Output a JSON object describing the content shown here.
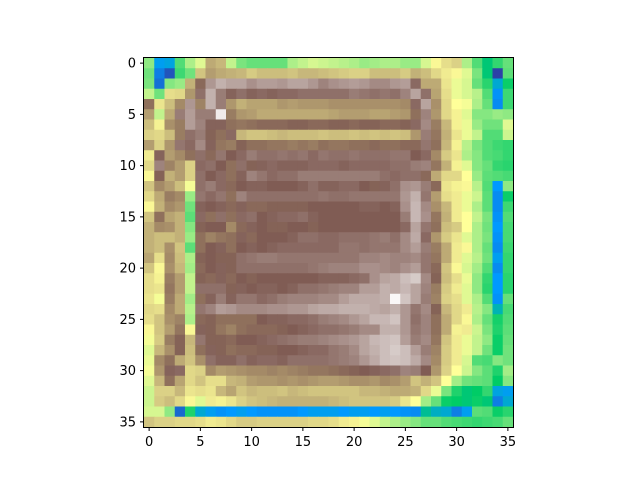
{
  "chart_data": {
    "type": "heatmap",
    "title": "",
    "xlabel": "",
    "ylabel": "",
    "colormap": "terrain",
    "rows": 36,
    "cols": 36,
    "xlim": [
      -0.5,
      35.5
    ],
    "ylim": [
      35.5,
      -0.5
    ],
    "x_ticks": [
      0,
      5,
      10,
      15,
      20,
      25,
      30,
      35
    ],
    "y_ticks": [
      0,
      5,
      10,
      15,
      20,
      25,
      30,
      35
    ],
    "x_tick_labels": [
      "0",
      "5",
      "10",
      "15",
      "20",
      "25",
      "30",
      "35"
    ],
    "y_tick_labels": [
      "0",
      "5",
      "10",
      "15",
      "20",
      "25",
      "30",
      "35"
    ],
    "grid": false,
    "values": [
      [
        0.39,
        0.16,
        0.17,
        0.33,
        0.42,
        0.47,
        0.63,
        0.61,
        0.44,
        0.37,
        0.35,
        0.35,
        0.35,
        0.35,
        0.42,
        0.44,
        0.46,
        0.45,
        0.44,
        0.43,
        0.42,
        0.4,
        0.41,
        0.42,
        0.42,
        0.4,
        0.4,
        0.46,
        0.51,
        0.55,
        0.57,
        0.42,
        0.33,
        0.24,
        0.3,
        0.35
      ],
      [
        0.36,
        0.11,
        0.05,
        0.31,
        0.36,
        0.59,
        0.65,
        0.63,
        0.62,
        0.61,
        0.58,
        0.6,
        0.6,
        0.6,
        0.59,
        0.61,
        0.61,
        0.6,
        0.59,
        0.58,
        0.57,
        0.57,
        0.6,
        0.6,
        0.6,
        0.58,
        0.62,
        0.6,
        0.56,
        0.53,
        0.51,
        0.47,
        0.37,
        0.24,
        0.02,
        0.34
      ],
      [
        0.37,
        0.09,
        0.38,
        0.4,
        0.62,
        0.73,
        0.84,
        0.88,
        0.86,
        0.86,
        0.83,
        0.85,
        0.85,
        0.84,
        0.86,
        0.86,
        0.84,
        0.81,
        0.83,
        0.84,
        0.85,
        0.84,
        0.82,
        0.82,
        0.84,
        0.85,
        0.77,
        0.63,
        0.63,
        0.54,
        0.48,
        0.46,
        0.35,
        0.29,
        0.18,
        0.26
      ],
      [
        0.44,
        0.36,
        0.55,
        0.56,
        0.66,
        0.78,
        0.88,
        0.8,
        0.76,
        0.78,
        0.76,
        0.77,
        0.76,
        0.77,
        0.77,
        0.78,
        0.78,
        0.78,
        0.78,
        0.78,
        0.8,
        0.79,
        0.78,
        0.79,
        0.78,
        0.81,
        0.86,
        0.78,
        0.64,
        0.55,
        0.48,
        0.46,
        0.43,
        0.33,
        0.14,
        0.31
      ],
      [
        0.72,
        0.54,
        0.6,
        0.68,
        0.84,
        0.69,
        0.88,
        0.8,
        0.66,
        0.62,
        0.64,
        0.64,
        0.64,
        0.66,
        0.65,
        0.66,
        0.66,
        0.66,
        0.67,
        0.67,
        0.67,
        0.67,
        0.67,
        0.67,
        0.67,
        0.68,
        0.77,
        0.86,
        0.67,
        0.56,
        0.5,
        0.49,
        0.42,
        0.35,
        0.13,
        0.31
      ],
      [
        0.65,
        0.44,
        0.63,
        0.8,
        0.85,
        0.8,
        0.8,
        0.97,
        0.7,
        0.66,
        0.65,
        0.63,
        0.63,
        0.63,
        0.63,
        0.63,
        0.63,
        0.63,
        0.64,
        0.65,
        0.65,
        0.65,
        0.64,
        0.64,
        0.65,
        0.66,
        0.72,
        0.81,
        0.66,
        0.56,
        0.52,
        0.47,
        0.38,
        0.38,
        0.4,
        0.39
      ],
      [
        0.6,
        0.52,
        0.67,
        0.7,
        0.85,
        0.81,
        0.76,
        0.76,
        0.72,
        0.71,
        0.72,
        0.73,
        0.73,
        0.73,
        0.74,
        0.74,
        0.73,
        0.73,
        0.74,
        0.74,
        0.73,
        0.74,
        0.74,
        0.73,
        0.73,
        0.74,
        0.77,
        0.82,
        0.7,
        0.61,
        0.52,
        0.48,
        0.4,
        0.36,
        0.36,
        0.47
      ],
      [
        0.57,
        0.56,
        0.6,
        0.7,
        0.78,
        0.8,
        0.74,
        0.72,
        0.77,
        0.61,
        0.59,
        0.59,
        0.6,
        0.61,
        0.6,
        0.6,
        0.6,
        0.59,
        0.6,
        0.6,
        0.59,
        0.6,
        0.59,
        0.6,
        0.59,
        0.6,
        0.66,
        0.8,
        0.71,
        0.62,
        0.54,
        0.48,
        0.44,
        0.33,
        0.33,
        0.45
      ],
      [
        0.65,
        0.57,
        0.66,
        0.79,
        0.77,
        0.82,
        0.76,
        0.71,
        0.7,
        0.74,
        0.72,
        0.72,
        0.71,
        0.71,
        0.7,
        0.71,
        0.7,
        0.72,
        0.71,
        0.71,
        0.72,
        0.72,
        0.73,
        0.72,
        0.72,
        0.73,
        0.73,
        0.79,
        0.72,
        0.61,
        0.52,
        0.43,
        0.37,
        0.33,
        0.31,
        0.3
      ],
      [
        0.53,
        0.76,
        0.65,
        0.68,
        0.72,
        0.78,
        0.73,
        0.79,
        0.75,
        0.77,
        0.8,
        0.78,
        0.78,
        0.79,
        0.78,
        0.79,
        0.77,
        0.79,
        0.78,
        0.78,
        0.79,
        0.78,
        0.78,
        0.78,
        0.79,
        0.79,
        0.75,
        0.77,
        0.68,
        0.58,
        0.54,
        0.42,
        0.38,
        0.33,
        0.32,
        0.3
      ],
      [
        0.56,
        0.81,
        0.69,
        0.65,
        0.57,
        0.77,
        0.78,
        0.75,
        0.72,
        0.78,
        0.74,
        0.76,
        0.77,
        0.76,
        0.76,
        0.76,
        0.77,
        0.77,
        0.77,
        0.76,
        0.77,
        0.77,
        0.77,
        0.77,
        0.78,
        0.78,
        0.8,
        0.81,
        0.71,
        0.62,
        0.52,
        0.47,
        0.38,
        0.35,
        0.3,
        0.29
      ],
      [
        0.51,
        0.74,
        0.62,
        0.65,
        0.57,
        0.78,
        0.75,
        0.77,
        0.72,
        0.76,
        0.81,
        0.79,
        0.77,
        0.78,
        0.78,
        0.8,
        0.8,
        0.8,
        0.8,
        0.8,
        0.8,
        0.8,
        0.8,
        0.78,
        0.77,
        0.78,
        0.78,
        0.73,
        0.63,
        0.56,
        0.56,
        0.5,
        0.4,
        0.34,
        0.33,
        0.32
      ],
      [
        0.59,
        0.68,
        0.65,
        0.6,
        0.49,
        0.78,
        0.8,
        0.77,
        0.73,
        0.75,
        0.76,
        0.76,
        0.75,
        0.75,
        0.75,
        0.76,
        0.78,
        0.76,
        0.76,
        0.77,
        0.77,
        0.75,
        0.74,
        0.76,
        0.78,
        0.83,
        0.84,
        0.8,
        0.73,
        0.54,
        0.52,
        0.51,
        0.43,
        0.33,
        0.15,
        0.39
      ],
      [
        0.56,
        0.63,
        0.7,
        0.68,
        0.4,
        0.79,
        0.77,
        0.79,
        0.72,
        0.81,
        0.78,
        0.78,
        0.78,
        0.78,
        0.78,
        0.78,
        0.78,
        0.79,
        0.78,
        0.78,
        0.79,
        0.79,
        0.79,
        0.79,
        0.79,
        0.84,
        0.88,
        0.79,
        0.65,
        0.55,
        0.53,
        0.48,
        0.45,
        0.34,
        0.13,
        0.26
      ],
      [
        0.51,
        0.62,
        0.68,
        0.66,
        0.36,
        0.76,
        0.75,
        0.76,
        0.73,
        0.76,
        0.73,
        0.73,
        0.74,
        0.74,
        0.74,
        0.74,
        0.75,
        0.75,
        0.75,
        0.75,
        0.75,
        0.76,
        0.76,
        0.75,
        0.76,
        0.83,
        0.89,
        0.82,
        0.67,
        0.61,
        0.53,
        0.48,
        0.42,
        0.34,
        0.13,
        0.31
      ],
      [
        0.59,
        0.72,
        0.64,
        0.62,
        0.34,
        0.77,
        0.72,
        0.78,
        0.72,
        0.77,
        0.78,
        0.75,
        0.76,
        0.77,
        0.77,
        0.78,
        0.76,
        0.75,
        0.75,
        0.75,
        0.75,
        0.75,
        0.75,
        0.75,
        0.75,
        0.8,
        0.89,
        0.83,
        0.71,
        0.62,
        0.53,
        0.5,
        0.44,
        0.37,
        0.14,
        0.33
      ],
      [
        0.62,
        0.68,
        0.67,
        0.62,
        0.38,
        0.74,
        0.75,
        0.75,
        0.68,
        0.73,
        0.76,
        0.75,
        0.74,
        0.74,
        0.75,
        0.75,
        0.74,
        0.75,
        0.75,
        0.75,
        0.75,
        0.75,
        0.75,
        0.75,
        0.75,
        0.77,
        0.86,
        0.79,
        0.72,
        0.6,
        0.58,
        0.5,
        0.42,
        0.36,
        0.15,
        0.32
      ],
      [
        0.62,
        0.6,
        0.6,
        0.62,
        0.4,
        0.72,
        0.69,
        0.71,
        0.72,
        0.76,
        0.73,
        0.75,
        0.75,
        0.75,
        0.76,
        0.78,
        0.78,
        0.77,
        0.77,
        0.78,
        0.78,
        0.78,
        0.79,
        0.8,
        0.78,
        0.82,
        0.87,
        0.77,
        0.66,
        0.58,
        0.54,
        0.47,
        0.42,
        0.37,
        0.14,
        0.32
      ],
      [
        0.62,
        0.6,
        0.67,
        0.59,
        0.34,
        0.72,
        0.75,
        0.76,
        0.72,
        0.75,
        0.76,
        0.75,
        0.76,
        0.77,
        0.77,
        0.77,
        0.77,
        0.77,
        0.77,
        0.79,
        0.79,
        0.78,
        0.79,
        0.79,
        0.79,
        0.82,
        0.85,
        0.8,
        0.7,
        0.63,
        0.53,
        0.51,
        0.42,
        0.35,
        0.13,
        0.31
      ],
      [
        0.64,
        0.55,
        0.68,
        0.6,
        0.42,
        0.74,
        0.75,
        0.74,
        0.74,
        0.78,
        0.79,
        0.8,
        0.8,
        0.79,
        0.79,
        0.79,
        0.79,
        0.79,
        0.79,
        0.79,
        0.79,
        0.81,
        0.81,
        0.82,
        0.81,
        0.81,
        0.82,
        0.79,
        0.71,
        0.63,
        0.53,
        0.47,
        0.43,
        0.36,
        0.16,
        0.3
      ],
      [
        0.59,
        0.51,
        0.67,
        0.61,
        0.41,
        0.73,
        0.75,
        0.76,
        0.74,
        0.78,
        0.78,
        0.78,
        0.78,
        0.78,
        0.78,
        0.78,
        0.79,
        0.8,
        0.81,
        0.81,
        0.81,
        0.83,
        0.83,
        0.82,
        0.81,
        0.83,
        0.85,
        0.79,
        0.73,
        0.59,
        0.51,
        0.46,
        0.41,
        0.33,
        0.13,
        0.3
      ],
      [
        0.55,
        0.52,
        0.7,
        0.65,
        0.44,
        0.74,
        0.73,
        0.76,
        0.73,
        0.75,
        0.74,
        0.75,
        0.75,
        0.75,
        0.75,
        0.75,
        0.75,
        0.76,
        0.76,
        0.76,
        0.77,
        0.78,
        0.83,
        0.86,
        0.87,
        0.9,
        0.92,
        0.82,
        0.74,
        0.6,
        0.55,
        0.48,
        0.39,
        0.3,
        0.15,
        0.29
      ],
      [
        0.55,
        0.54,
        0.71,
        0.65,
        0.44,
        0.78,
        0.78,
        0.78,
        0.74,
        0.76,
        0.75,
        0.76,
        0.76,
        0.75,
        0.76,
        0.78,
        0.78,
        0.79,
        0.8,
        0.81,
        0.81,
        0.85,
        0.85,
        0.88,
        0.87,
        0.89,
        0.86,
        0.81,
        0.7,
        0.58,
        0.53,
        0.47,
        0.39,
        0.29,
        0.15,
        0.29
      ],
      [
        0.54,
        0.49,
        0.7,
        0.63,
        0.41,
        0.72,
        0.76,
        0.8,
        0.76,
        0.79,
        0.79,
        0.77,
        0.78,
        0.8,
        0.81,
        0.81,
        0.81,
        0.82,
        0.82,
        0.85,
        0.87,
        0.87,
        0.87,
        0.88,
        0.99,
        0.91,
        0.86,
        0.8,
        0.69,
        0.57,
        0.55,
        0.47,
        0.42,
        0.33,
        0.14,
        0.35
      ],
      [
        0.56,
        0.55,
        0.68,
        0.63,
        0.43,
        0.79,
        0.81,
        0.85,
        0.84,
        0.82,
        0.82,
        0.82,
        0.83,
        0.83,
        0.84,
        0.84,
        0.86,
        0.87,
        0.87,
        0.88,
        0.88,
        0.88,
        0.87,
        0.86,
        0.88,
        0.84,
        0.79,
        0.82,
        0.74,
        0.61,
        0.56,
        0.53,
        0.43,
        0.38,
        0.2,
        0.32
      ],
      [
        0.55,
        0.59,
        0.67,
        0.69,
        0.42,
        0.73,
        0.74,
        0.72,
        0.72,
        0.72,
        0.72,
        0.75,
        0.76,
        0.76,
        0.77,
        0.77,
        0.78,
        0.8,
        0.81,
        0.82,
        0.84,
        0.86,
        0.89,
        0.89,
        0.91,
        0.84,
        0.78,
        0.81,
        0.72,
        0.63,
        0.56,
        0.51,
        0.42,
        0.35,
        0.27,
        0.33
      ],
      [
        0.51,
        0.59,
        0.65,
        0.71,
        0.51,
        0.76,
        0.74,
        0.71,
        0.69,
        0.72,
        0.73,
        0.73,
        0.73,
        0.74,
        0.75,
        0.76,
        0.77,
        0.78,
        0.78,
        0.79,
        0.8,
        0.82,
        0.82,
        0.88,
        0.88,
        0.84,
        0.79,
        0.81,
        0.72,
        0.63,
        0.52,
        0.53,
        0.45,
        0.37,
        0.28,
        0.34
      ],
      [
        0.49,
        0.58,
        0.7,
        0.74,
        0.61,
        0.79,
        0.74,
        0.74,
        0.73,
        0.75,
        0.75,
        0.76,
        0.77,
        0.78,
        0.79,
        0.8,
        0.8,
        0.81,
        0.82,
        0.83,
        0.84,
        0.86,
        0.89,
        0.9,
        0.91,
        0.85,
        0.8,
        0.82,
        0.71,
        0.59,
        0.53,
        0.48,
        0.44,
        0.39,
        0.26,
        0.35
      ],
      [
        0.47,
        0.61,
        0.67,
        0.74,
        0.6,
        0.72,
        0.76,
        0.74,
        0.72,
        0.73,
        0.73,
        0.74,
        0.74,
        0.75,
        0.75,
        0.76,
        0.77,
        0.77,
        0.79,
        0.8,
        0.82,
        0.86,
        0.88,
        0.9,
        0.92,
        0.9,
        0.85,
        0.8,
        0.69,
        0.58,
        0.53,
        0.48,
        0.44,
        0.36,
        0.26,
        0.36
      ],
      [
        0.48,
        0.68,
        0.72,
        0.63,
        0.59,
        0.67,
        0.78,
        0.76,
        0.76,
        0.78,
        0.76,
        0.77,
        0.77,
        0.76,
        0.78,
        0.78,
        0.78,
        0.78,
        0.79,
        0.8,
        0.81,
        0.84,
        0.87,
        0.9,
        0.91,
        0.9,
        0.87,
        0.82,
        0.68,
        0.58,
        0.53,
        0.46,
        0.33,
        0.32,
        0.38,
        0.36
      ],
      [
        0.49,
        0.66,
        0.76,
        0.77,
        0.56,
        0.57,
        0.68,
        0.65,
        0.66,
        0.67,
        0.68,
        0.68,
        0.69,
        0.68,
        0.69,
        0.7,
        0.71,
        0.71,
        0.72,
        0.73,
        0.74,
        0.75,
        0.76,
        0.77,
        0.78,
        0.81,
        0.8,
        0.75,
        0.66,
        0.57,
        0.5,
        0.45,
        0.38,
        0.34,
        0.28,
        0.41
      ],
      [
        0.47,
        0.61,
        0.72,
        0.64,
        0.56,
        0.59,
        0.55,
        0.55,
        0.61,
        0.62,
        0.65,
        0.66,
        0.66,
        0.67,
        0.66,
        0.67,
        0.66,
        0.65,
        0.65,
        0.66,
        0.67,
        0.67,
        0.66,
        0.68,
        0.67,
        0.65,
        0.59,
        0.62,
        0.59,
        0.5,
        0.41,
        0.36,
        0.35,
        0.34,
        0.25,
        0.38
      ],
      [
        0.45,
        0.57,
        0.57,
        0.61,
        0.54,
        0.55,
        0.54,
        0.61,
        0.64,
        0.59,
        0.61,
        0.6,
        0.6,
        0.59,
        0.61,
        0.6,
        0.59,
        0.59,
        0.59,
        0.59,
        0.59,
        0.61,
        0.61,
        0.62,
        0.63,
        0.63,
        0.62,
        0.56,
        0.48,
        0.37,
        0.28,
        0.24,
        0.25,
        0.3,
        0.17,
        0.16
      ],
      [
        0.45,
        0.58,
        0.6,
        0.56,
        0.51,
        0.47,
        0.53,
        0.52,
        0.54,
        0.57,
        0.59,
        0.6,
        0.61,
        0.62,
        0.62,
        0.62,
        0.62,
        0.62,
        0.61,
        0.6,
        0.59,
        0.59,
        0.59,
        0.59,
        0.58,
        0.54,
        0.5,
        0.41,
        0.35,
        0.26,
        0.25,
        0.24,
        0.26,
        0.24,
        0.11,
        0.18
      ],
      [
        0.46,
        0.46,
        0.39,
        0.08,
        0.28,
        0.18,
        0.16,
        0.14,
        0.15,
        0.16,
        0.15,
        0.14,
        0.14,
        0.14,
        0.14,
        0.15,
        0.16,
        0.16,
        0.16,
        0.15,
        0.16,
        0.16,
        0.15,
        0.16,
        0.15,
        0.14,
        0.13,
        0.22,
        0.19,
        0.18,
        0.11,
        0.16,
        0.34,
        0.33,
        0.26,
        0.29
      ],
      [
        0.59,
        0.57,
        0.57,
        0.56,
        0.56,
        0.55,
        0.53,
        0.54,
        0.56,
        0.58,
        0.58,
        0.57,
        0.57,
        0.57,
        0.57,
        0.57,
        0.56,
        0.56,
        0.55,
        0.53,
        0.52,
        0.49,
        0.47,
        0.44,
        0.42,
        0.4,
        0.38,
        0.35,
        0.35,
        0.33,
        0.32,
        0.31,
        0.3,
        0.31,
        0.32,
        0.35
      ]
    ]
  }
}
